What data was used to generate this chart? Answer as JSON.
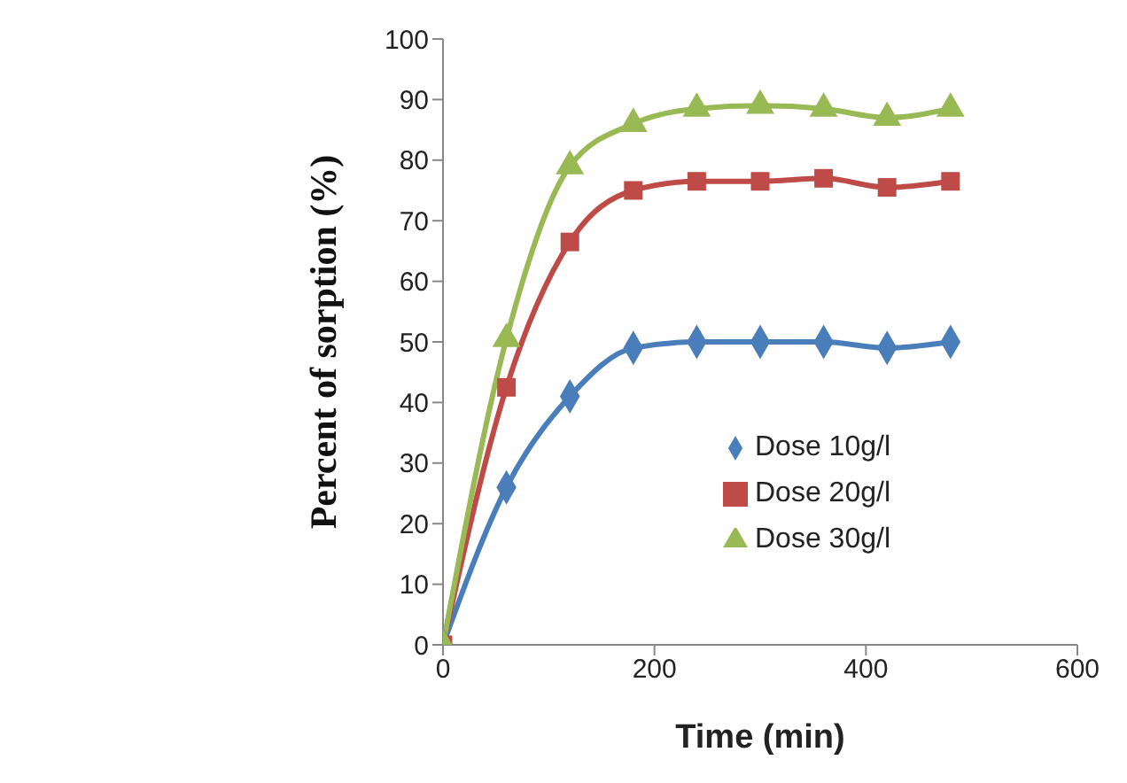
{
  "chart_data": {
    "type": "line",
    "xlabel": "Time (min)",
    "ylabel": "Percent of sorption (%)",
    "x": [
      0,
      60,
      120,
      180,
      240,
      300,
      360,
      420,
      480
    ],
    "series": [
      {
        "name": "Dose 10g/l",
        "color": "#4a7ebb",
        "marker": "diamond",
        "values": [
          0,
          26,
          41,
          49,
          50,
          50,
          50,
          49,
          50
        ]
      },
      {
        "name": "Dose 20g/l",
        "color": "#be4b48",
        "marker": "square",
        "values": [
          0,
          42.5,
          66.5,
          75,
          76.5,
          76.5,
          77,
          75.5,
          76.5
        ]
      },
      {
        "name": "Dose 30g/l",
        "color": "#98b954",
        "marker": "triangle",
        "values": [
          0,
          50.5,
          79,
          86,
          88.5,
          89,
          88.5,
          87,
          88.5
        ]
      }
    ],
    "xlim": [
      0,
      600
    ],
    "xticks": [
      0,
      200,
      400,
      600
    ],
    "ylim": [
      0,
      100
    ],
    "yticks": [
      0,
      10,
      20,
      30,
      40,
      50,
      60,
      70,
      80,
      90,
      100
    ],
    "legend": "right",
    "line_style": "solid"
  }
}
